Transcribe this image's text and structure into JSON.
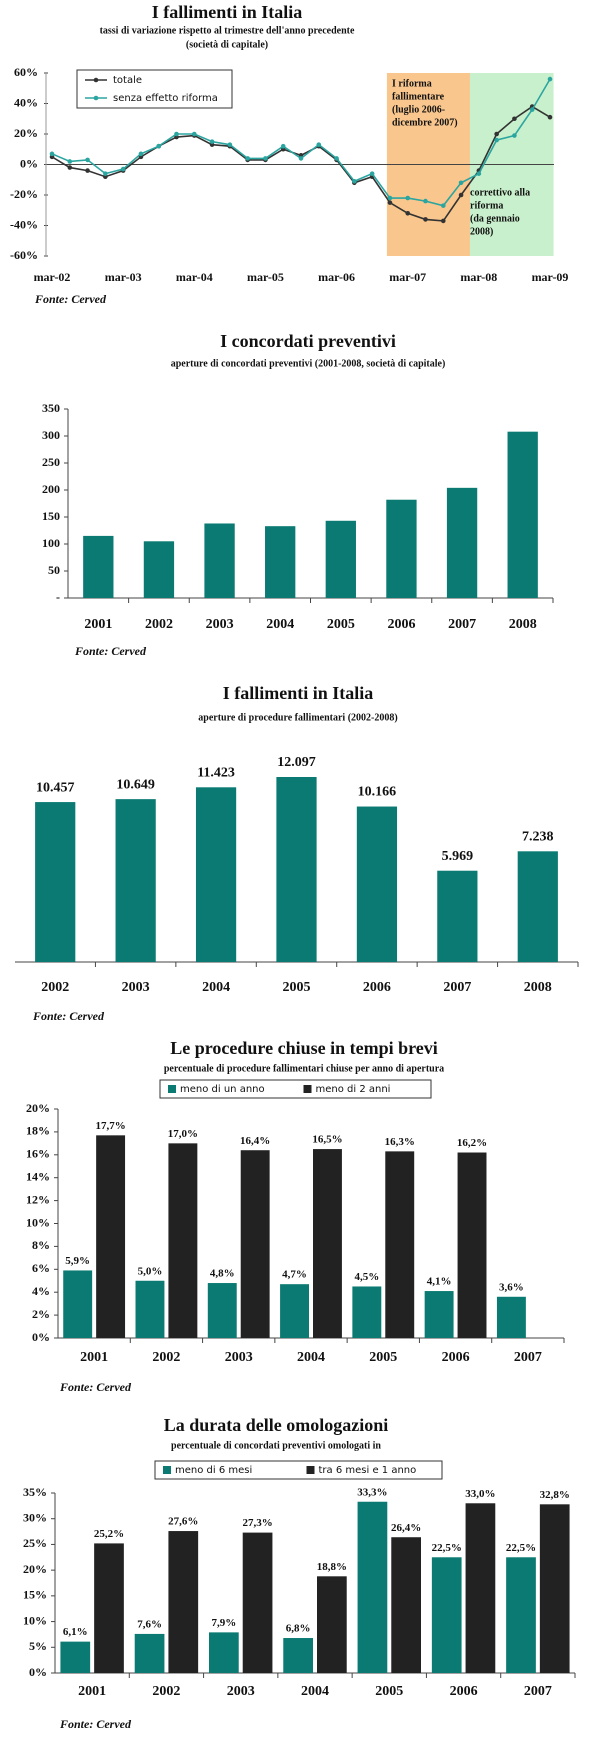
{
  "chart_data": [
    {
      "type": "line",
      "title": "I fallimenti in Italia",
      "subtitle": [
        "tassi di variazione rispetto al trimestre dell'anno precedente",
        "(società di capitale)"
      ],
      "categories": [
        "mar-02",
        null,
        null,
        null,
        "mar-03",
        null,
        null,
        null,
        "mar-04",
        null,
        null,
        null,
        "mar-05",
        null,
        null,
        null,
        "mar-06",
        null,
        null,
        null,
        "mar-07",
        null,
        null,
        null,
        "mar-08",
        null,
        null,
        null,
        "mar-09"
      ],
      "series": [
        {
          "name": "totale",
          "color": "#333333",
          "values": [
            5,
            -2,
            -4,
            -8,
            -4,
            5,
            12,
            18,
            19,
            13,
            12,
            3,
            3,
            10,
            6,
            12,
            3,
            -12,
            -8,
            -25,
            -32,
            -36,
            -37,
            -20,
            -4,
            20,
            30,
            38,
            31
          ]
        },
        {
          "name": "senza effetto riforma",
          "color": "#2ba5a0",
          "values": [
            7,
            2,
            3,
            -6,
            -3,
            7,
            12,
            20,
            20,
            15,
            13,
            4,
            4,
            12,
            4,
            13,
            4,
            -11,
            -6,
            -22,
            -22,
            -24,
            -27,
            -12,
            -6,
            16,
            19,
            36,
            56
          ]
        }
      ],
      "ylim": [
        -60,
        60
      ],
      "yticks": [
        {
          "value": -60,
          "label": "-60%"
        },
        {
          "value": -40,
          "label": "-40%"
        },
        {
          "value": -20,
          "label": "-20%"
        },
        {
          "value": 0,
          "label": "0%"
        },
        {
          "value": 20,
          "label": "20%"
        },
        {
          "value": 40,
          "label": "40%"
        },
        {
          "value": 60,
          "label": "60%"
        }
      ],
      "legend": "top-left",
      "annotations": [
        {
          "text": [
            "I riforma",
            "fallimentare",
            "(luglio 2006-",
            "dicembre 2007)"
          ],
          "color": "#f9c68d"
        },
        {
          "text": [
            "correttivo alla",
            "riforma",
            "(da gennaio",
            "2008)"
          ],
          "color": "#c9f0cc"
        }
      ],
      "source": "Fonte: Cerved"
    },
    {
      "type": "bar",
      "title": "I concordati preventivi",
      "subtitle": [
        "aperture di concordati preventivi (2001-2008, società di capitale)"
      ],
      "categories": [
        "2001",
        "2002",
        "2003",
        "2004",
        "2005",
        "2006",
        "2007",
        "2008"
      ],
      "values": [
        115,
        105,
        138,
        133,
        143,
        182,
        204,
        308
      ],
      "color": "#0a7a72",
      "ylim": [
        0,
        350
      ],
      "yticks": [
        {
          "value": 0,
          "label": "-"
        },
        50,
        100,
        150,
        200,
        250,
        300,
        350
      ],
      "source": "Fonte: Cerved"
    },
    {
      "type": "bar",
      "title": "I fallimenti in Italia",
      "subtitle": [
        "aperture di procedure fallimentari (2002-2008)"
      ],
      "categories": [
        "2002",
        "2003",
        "2004",
        "2005",
        "2006",
        "2007",
        "2008"
      ],
      "values": [
        10457,
        10649,
        11423,
        12097,
        10166,
        5969,
        7238
      ],
      "value_labels": [
        "10.457",
        "10.649",
        "11.423",
        "12.097",
        "10.166",
        "5.969",
        "7.238"
      ],
      "color": "#0a7a72",
      "source": "Fonte: Cerved"
    },
    {
      "type": "bar",
      "title": "Le procedure chiuse in tempi brevi",
      "subtitle": [
        "percentuale di procedure fallimentari chiuse per anno di apertura"
      ],
      "categories": [
        "2001",
        "2002",
        "2003",
        "2004",
        "2005",
        "2006",
        "2007"
      ],
      "series": [
        {
          "name": "meno di un anno",
          "color": "#0a7a72",
          "values": [
            5.9,
            5.0,
            4.8,
            4.7,
            4.5,
            4.1,
            3.6
          ],
          "value_labels": [
            "5,9%",
            "5,0%",
            "4,8%",
            "4,7%",
            "4,5%",
            "4,1%",
            "3,6%"
          ]
        },
        {
          "name": "meno di 2 anni",
          "color": "#222222",
          "values": [
            17.7,
            17.0,
            16.4,
            16.5,
            16.3,
            16.2,
            null
          ],
          "value_labels": [
            "17,7%",
            "17,0%",
            "16,4%",
            "16,5%",
            "16,3%",
            "16,2%",
            null
          ]
        }
      ],
      "ylim": [
        0,
        20
      ],
      "yticks": [
        {
          "value": 0,
          "label": "0%"
        },
        {
          "value": 2,
          "label": "2%"
        },
        {
          "value": 4,
          "label": "4%"
        },
        {
          "value": 6,
          "label": "6%"
        },
        {
          "value": 8,
          "label": "8%"
        },
        {
          "value": 10,
          "label": "10%"
        },
        {
          "value": 12,
          "label": "12%"
        },
        {
          "value": 14,
          "label": "14%"
        },
        {
          "value": 16,
          "label": "16%"
        },
        {
          "value": 18,
          "label": "18%"
        },
        {
          "value": 20,
          "label": "20%"
        }
      ],
      "legend": "top",
      "source": "Fonte: Cerved"
    },
    {
      "type": "bar",
      "title": "La durata delle omologazioni",
      "subtitle": [
        "percentuale di concordati preventivi omologati in"
      ],
      "categories": [
        "2001",
        "2002",
        "2003",
        "2004",
        "2005",
        "2006",
        "2007"
      ],
      "series": [
        {
          "name": "meno di 6 mesi",
          "color": "#0a7a72",
          "values": [
            6.1,
            7.6,
            7.9,
            6.8,
            33.3,
            22.5,
            22.5
          ],
          "value_labels": [
            "6,1%",
            "7,6%",
            "7,9%",
            "6,8%",
            "33,3%",
            "22,5%",
            "22,5%"
          ]
        },
        {
          "name": "tra 6 mesi e 1 anno",
          "color": "#222222",
          "values": [
            25.2,
            27.6,
            27.3,
            18.8,
            26.4,
            33.0,
            32.8
          ],
          "value_labels": [
            "25,2%",
            "27,6%",
            "27,3%",
            "18,8%",
            "26,4%",
            "33,0%",
            "32,8%"
          ]
        }
      ],
      "ylim": [
        0,
        35
      ],
      "yticks": [
        {
          "value": 0,
          "label": "0%"
        },
        {
          "value": 5,
          "label": "5%"
        },
        {
          "value": 10,
          "label": "10%"
        },
        {
          "value": 15,
          "label": "15%"
        },
        {
          "value": 20,
          "label": "20%"
        },
        {
          "value": 25,
          "label": "25%"
        },
        {
          "value": 30,
          "label": "30%"
        },
        {
          "value": 35,
          "label": "35%"
        }
      ],
      "legend": "top",
      "source": "Fonte: Cerved"
    }
  ]
}
